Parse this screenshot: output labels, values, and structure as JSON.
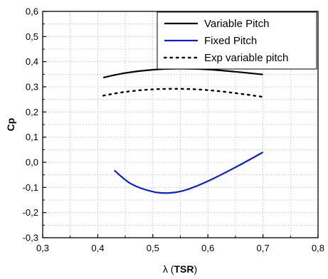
{
  "chart_data": {
    "type": "line",
    "title": "",
    "xlabel_prefix": "λ (",
    "xlabel_bold": "TSR",
    "xlabel_suffix": ")",
    "ylabel": "Cp",
    "xlim": [
      0.3,
      0.8
    ],
    "ylim": [
      -0.3,
      0.6
    ],
    "xticks": [
      0.3,
      0.4,
      0.5,
      0.6,
      0.7,
      0.8
    ],
    "yticks": [
      -0.3,
      -0.2,
      -0.1,
      0.0,
      0.1,
      0.2,
      0.3,
      0.4,
      0.5,
      0.6
    ],
    "xtick_labels": [
      "0,3",
      "0,4",
      "0,5",
      "0,6",
      "0,7",
      "0,8"
    ],
    "ytick_labels": [
      "-0,3",
      "-0,2",
      "-0,1",
      "0,0",
      "0,1",
      "0,2",
      "0,3",
      "0,4",
      "0,5",
      "0,6"
    ],
    "grid": true,
    "legend_position": "top-right",
    "series": [
      {
        "name": "Variable Pitch",
        "color": "#000000",
        "style": "solid",
        "x": [
          0.41,
          0.45,
          0.5,
          0.55,
          0.6,
          0.65,
          0.7
        ],
        "y": [
          0.337,
          0.355,
          0.368,
          0.372,
          0.369,
          0.36,
          0.349
        ]
      },
      {
        "name": "Fixed Pitch",
        "color": "#0a1fd8",
        "style": "solid",
        "x": [
          0.43,
          0.46,
          0.5,
          0.53,
          0.56,
          0.6,
          0.65,
          0.7
        ],
        "y": [
          -0.032,
          -0.085,
          -0.117,
          -0.122,
          -0.11,
          -0.075,
          -0.02,
          0.04
        ]
      },
      {
        "name": "Exp variable pitch",
        "color": "#000000",
        "style": "dotted",
        "x": [
          0.41,
          0.45,
          0.5,
          0.55,
          0.6,
          0.65,
          0.7
        ],
        "y": [
          0.265,
          0.28,
          0.29,
          0.292,
          0.287,
          0.275,
          0.26
        ]
      }
    ]
  }
}
